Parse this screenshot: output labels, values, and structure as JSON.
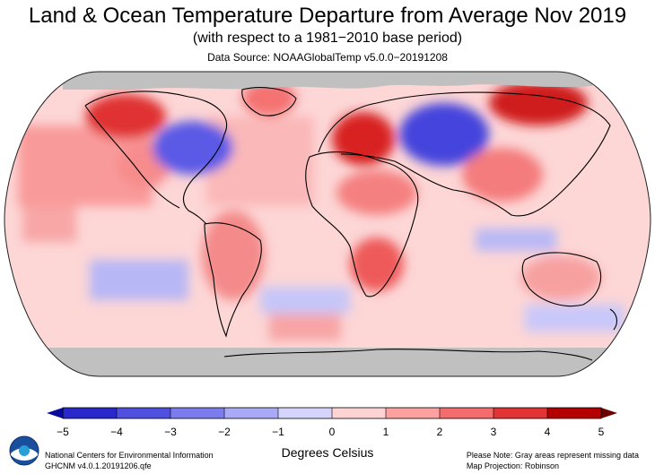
{
  "header": {
    "title": "Land & Ocean Temperature Departure from Average Nov 2019",
    "subtitle": "(with respect to a 1981−2010 base period)",
    "source": "Data Source: NOAAGlobalTemp v5.0.0−20191208"
  },
  "map": {
    "projection": "Robinson",
    "missing_color": "#c0c0c0",
    "regions": [
      {
        "label": "Arctic Ocean",
        "anomaly": null
      },
      {
        "label": "Southern Ocean / Antarctica",
        "anomaly": null
      },
      {
        "label": "Alaska",
        "anomaly": 4.5
      },
      {
        "label": "Eastern Canada / Eastern United States",
        "anomaly": -2.5
      },
      {
        "label": "Western United States",
        "anomaly": 1.5
      },
      {
        "label": "Central Europe",
        "anomaly": 4
      },
      {
        "label": "Western Russia / Kazakhstan",
        "anomaly": -3
      },
      {
        "label": "Eastern Siberia",
        "anomaly": 4.5
      },
      {
        "label": "Southern Africa",
        "anomaly": 3
      },
      {
        "label": "Australia",
        "anomaly": 1.5
      },
      {
        "label": "South America",
        "anomaly": 1.5
      },
      {
        "label": "North Atlantic",
        "anomaly": 1
      },
      {
        "label": "South Pacific (mid-latitudes)",
        "anomaly": -0.5
      }
    ]
  },
  "colorbar": {
    "ticks": [
      "−5",
      "−4",
      "−3",
      "−2",
      "−1",
      "0",
      "1",
      "2",
      "3",
      "4",
      "5"
    ],
    "tick_values": [
      -5,
      -4,
      -3,
      -2,
      -1,
      0,
      1,
      2,
      3,
      4,
      5
    ],
    "title": "Degrees Celsius",
    "colors": [
      "#0a0a9e",
      "#2828cc",
      "#4f4fe0",
      "#7c7cef",
      "#a9a9f7",
      "#d4d4fc",
      "#fdd3d3",
      "#fca0a0",
      "#f56c6c",
      "#e23434",
      "#b40000",
      "#6b0000"
    ]
  },
  "footer": {
    "left_line1": "National Centers for Environmental Information",
    "left_line2": "GHCNM v4.0.1.20191206.qfe",
    "right_line1": "Please Note: Gray areas represent missing data",
    "right_line2": "Map Projection: Robinson",
    "logo_text": "NOAA"
  }
}
